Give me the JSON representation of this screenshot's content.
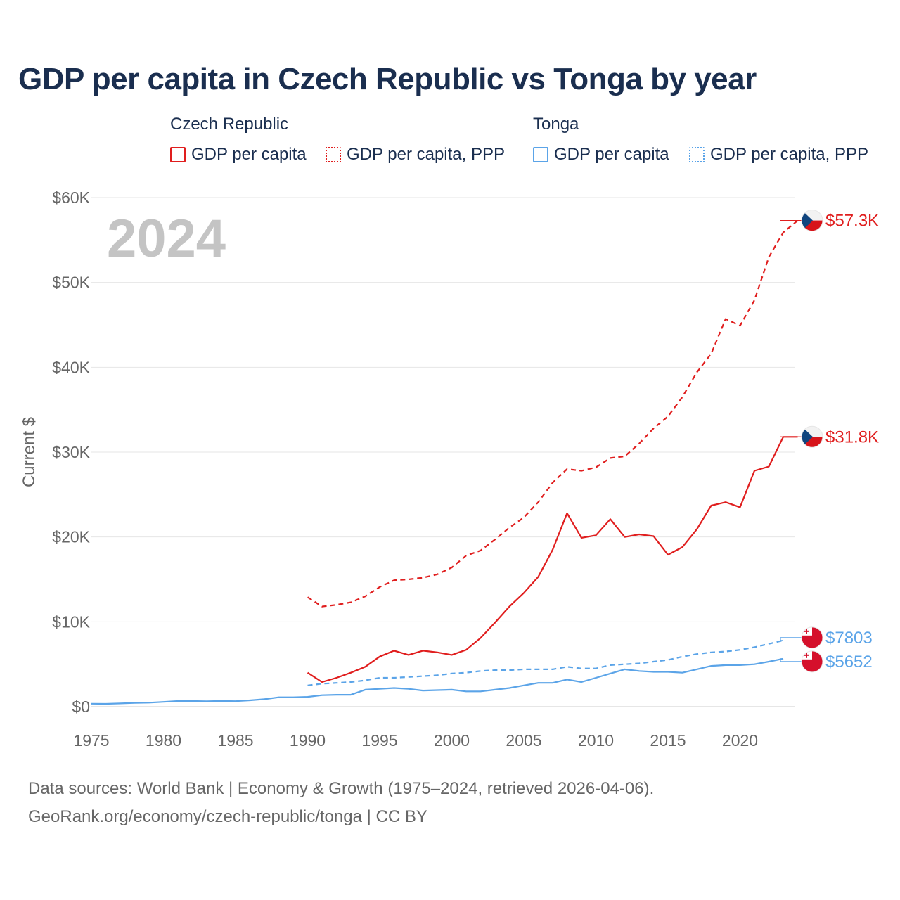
{
  "title": "GDP per capita in Czech Republic vs Tonga by year",
  "legend": {
    "czech_title": "Czech Republic",
    "tonga_title": "Tonga",
    "gdp_label": "GDP per capita",
    "ppp_label": "GDP per capita, PPP"
  },
  "colors": {
    "czech": "#e01e1e",
    "tonga": "#5ba4e8"
  },
  "year_watermark": "2024",
  "footer": {
    "line1": "Data sources: World Bank | Economy & Growth (1975–2024, retrieved 2026-04-06).",
    "line2": "GeoRank.org/economy/czech-republic/tonga | CC BY"
  },
  "chart_data": {
    "type": "line",
    "title": "GDP per capita in Czech Republic vs Tonga by year",
    "xlabel": "",
    "ylabel": "Current $",
    "xlim": [
      1975,
      2024
    ],
    "ylim": [
      0,
      60000
    ],
    "x_ticks": [
      1975,
      1980,
      1985,
      1990,
      1995,
      2000,
      2005,
      2010,
      2015,
      2020
    ],
    "y_ticks": [
      {
        "value": 0,
        "label": "$0"
      },
      {
        "value": 10000,
        "label": "$10K"
      },
      {
        "value": 20000,
        "label": "$20K"
      },
      {
        "value": 30000,
        "label": "$30K"
      },
      {
        "value": 40000,
        "label": "$40K"
      },
      {
        "value": 50000,
        "label": "$50K"
      },
      {
        "value": 60000,
        "label": "$60K"
      }
    ],
    "grid": true,
    "series": [
      {
        "name": "Czech Republic GDP per capita, PPP",
        "country": "czech",
        "style": "dashed",
        "end_label": "$57.3K",
        "x": [
          1990,
          1991,
          1992,
          1993,
          1994,
          1995,
          1996,
          1997,
          1998,
          1999,
          2000,
          2001,
          2002,
          2003,
          2004,
          2005,
          2006,
          2007,
          2008,
          2009,
          2010,
          2011,
          2012,
          2013,
          2014,
          2015,
          2016,
          2017,
          2018,
          2019,
          2020,
          2021,
          2022,
          2023,
          2024
        ],
        "values": [
          12900,
          11800,
          12000,
          12300,
          13000,
          14100,
          14900,
          15000,
          15200,
          15600,
          16400,
          17800,
          18400,
          19700,
          21100,
          22300,
          24100,
          26400,
          28000,
          27800,
          28200,
          29300,
          29500,
          31000,
          32800,
          34200,
          36500,
          39400,
          41600,
          45700,
          44900,
          47900,
          53000,
          55900,
          57300
        ]
      },
      {
        "name": "Czech Republic GDP per capita",
        "country": "czech",
        "style": "solid",
        "end_label": "$31.8K",
        "x": [
          1990,
          1991,
          1992,
          1993,
          1994,
          1995,
          1996,
          1997,
          1998,
          1999,
          2000,
          2001,
          2002,
          2003,
          2004,
          2005,
          2006,
          2007,
          2008,
          2009,
          2010,
          2011,
          2012,
          2013,
          2014,
          2015,
          2016,
          2017,
          2018,
          2019,
          2020,
          2021,
          2022,
          2023,
          2024
        ],
        "values": [
          4000,
          2900,
          3400,
          4000,
          4700,
          5900,
          6600,
          6100,
          6600,
          6400,
          6100,
          6700,
          8100,
          9900,
          11800,
          13400,
          15300,
          18500,
          22800,
          19900,
          20200,
          22100,
          20000,
          20300,
          20100,
          17900,
          18800,
          20900,
          23700,
          24100,
          23500,
          27800,
          28300,
          31800,
          31800
        ]
      },
      {
        "name": "Tonga GDP per capita, PPP",
        "country": "tonga",
        "style": "dashed",
        "end_label": "$7803",
        "x": [
          1990,
          1991,
          1992,
          1993,
          1994,
          1995,
          1996,
          1997,
          1998,
          1999,
          2000,
          2001,
          2002,
          2003,
          2004,
          2005,
          2006,
          2007,
          2008,
          2009,
          2010,
          2011,
          2012,
          2013,
          2014,
          2015,
          2016,
          2017,
          2018,
          2019,
          2020,
          2021,
          2022,
          2023
        ],
        "values": [
          2500,
          2700,
          2800,
          2900,
          3100,
          3400,
          3400,
          3500,
          3600,
          3700,
          3900,
          4000,
          4200,
          4300,
          4300,
          4400,
          4400,
          4400,
          4700,
          4500,
          4500,
          4900,
          5000,
          5100,
          5300,
          5500,
          5900,
          6200,
          6400,
          6500,
          6700,
          7000,
          7400,
          7803
        ]
      },
      {
        "name": "Tonga GDP per capita",
        "country": "tonga",
        "style": "solid",
        "end_label": "$5652",
        "x": [
          1975,
          1976,
          1977,
          1978,
          1979,
          1980,
          1981,
          1982,
          1983,
          1984,
          1985,
          1986,
          1987,
          1988,
          1989,
          1990,
          1991,
          1992,
          1993,
          1994,
          1995,
          1996,
          1997,
          1998,
          1999,
          2000,
          2001,
          2002,
          2003,
          2004,
          2005,
          2006,
          2007,
          2008,
          2009,
          2010,
          2011,
          2012,
          2013,
          2014,
          2015,
          2016,
          2017,
          2018,
          2019,
          2020,
          2021,
          2022,
          2023
        ],
        "values": [
          350,
          330,
          380,
          450,
          470,
          560,
          660,
          660,
          640,
          680,
          650,
          750,
          880,
          1100,
          1100,
          1150,
          1350,
          1400,
          1400,
          2000,
          2100,
          2200,
          2100,
          1900,
          1950,
          2000,
          1800,
          1800,
          2000,
          2200,
          2500,
          2800,
          2800,
          3200,
          2900,
          3400,
          3900,
          4400,
          4200,
          4100,
          4100,
          4000,
          4400,
          4800,
          4900,
          4900,
          5000,
          5300,
          5652
        ]
      }
    ]
  }
}
